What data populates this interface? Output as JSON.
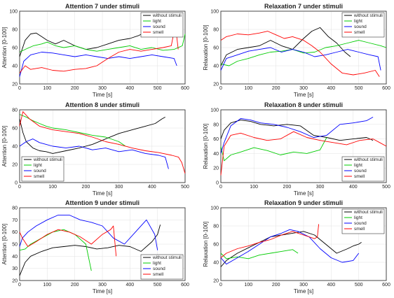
{
  "chart_data": [
    {
      "type": "line",
      "title": "Attention 7 under stimuli",
      "xlabel": "Time [s]",
      "ylabel": "Attention [0-100]",
      "xlim": [
        0,
        600
      ],
      "ylim": [
        20,
        100
      ],
      "xticks": [
        0,
        100,
        200,
        300,
        400,
        500,
        600
      ],
      "yticks": [
        20,
        40,
        60,
        80,
        100
      ],
      "grid": true,
      "legend": "top-right",
      "series": [
        {
          "name": "without stimuli",
          "color": "#000000",
          "x": [
            0,
            20,
            40,
            60,
            80,
            100,
            130,
            160,
            200,
            240,
            280,
            320,
            360,
            400,
            430,
            450,
            470
          ],
          "y": [
            50,
            68,
            75,
            76,
            72,
            68,
            64,
            68,
            62,
            58,
            60,
            64,
            68,
            70,
            73,
            76,
            80
          ]
        },
        {
          "name": "light",
          "color": "#00cc00",
          "x": [
            0,
            20,
            50,
            80,
            100,
            130,
            160,
            200,
            240,
            280,
            320,
            360,
            400,
            440,
            480,
            520,
            560,
            590,
            600
          ],
          "y": [
            55,
            58,
            62,
            64,
            66,
            62,
            60,
            62,
            58,
            56,
            58,
            60,
            62,
            58,
            60,
            57,
            58,
            62,
            75
          ]
        },
        {
          "name": "sound",
          "color": "#0000ff",
          "x": [
            0,
            15,
            40,
            80,
            120,
            160,
            200,
            240,
            280,
            320,
            360,
            400,
            440,
            480,
            520,
            560,
            570
          ],
          "y": [
            28,
            45,
            52,
            55,
            54,
            52,
            50,
            52,
            50,
            48,
            50,
            48,
            50,
            52,
            50,
            48,
            40
          ]
        },
        {
          "name": "smell",
          "color": "#ff0000",
          "x": [
            0,
            20,
            40,
            80,
            120,
            160,
            200,
            240,
            280,
            320,
            360,
            400,
            440,
            480,
            520,
            550,
            565,
            575
          ],
          "y": [
            32,
            40,
            36,
            38,
            35,
            34,
            36,
            37,
            40,
            48,
            55,
            58,
            56,
            58,
            60,
            62,
            85,
            58
          ]
        }
      ]
    },
    {
      "type": "line",
      "title": "Relaxation 7 under stimuli",
      "xlabel": "Time [s]",
      "ylabel": "Relaxation [0-100]",
      "xlim": [
        0,
        600
      ],
      "ylim": [
        20,
        100
      ],
      "xticks": [
        0,
        100,
        200,
        300,
        400,
        500,
        600
      ],
      "yticks": [
        20,
        40,
        60,
        80,
        100
      ],
      "grid": true,
      "legend": "top-right",
      "series": [
        {
          "name": "without stimuli",
          "color": "#000000",
          "x": [
            0,
            20,
            60,
            100,
            140,
            180,
            220,
            260,
            300,
            330,
            360,
            390,
            420,
            450,
            470
          ],
          "y": [
            40,
            52,
            58,
            60,
            62,
            68,
            62,
            58,
            70,
            78,
            82,
            72,
            65,
            55,
            50
          ]
        },
        {
          "name": "light",
          "color": "#00cc00",
          "x": [
            0,
            30,
            60,
            100,
            140,
            180,
            220,
            260,
            300,
            340,
            380,
            420,
            460,
            500,
            540,
            580,
            600
          ],
          "y": [
            42,
            40,
            45,
            48,
            52,
            55,
            56,
            58,
            54,
            55,
            60,
            62,
            65,
            68,
            65,
            62,
            60
          ]
        },
        {
          "name": "sound",
          "color": "#0000ff",
          "x": [
            0,
            20,
            60,
            100,
            140,
            180,
            220,
            260,
            300,
            340,
            380,
            420,
            460,
            500,
            540,
            570,
            580
          ],
          "y": [
            35,
            48,
            52,
            56,
            58,
            60,
            55,
            58,
            55,
            50,
            52,
            55,
            58,
            55,
            52,
            50,
            35
          ]
        },
        {
          "name": "smell",
          "color": "#ff0000",
          "x": [
            0,
            20,
            60,
            100,
            140,
            170,
            200,
            230,
            260,
            300,
            330,
            360,
            400,
            440,
            480,
            520,
            560,
            575
          ],
          "y": [
            68,
            72,
            75,
            74,
            76,
            78,
            74,
            70,
            72,
            68,
            62,
            55,
            42,
            32,
            30,
            32,
            35,
            28
          ]
        }
      ]
    },
    {
      "type": "line",
      "title": "Attention 8 under stimuli",
      "xlabel": "Time [s]",
      "ylabel": "Attention [0-100]",
      "xlim": [
        0,
        500
      ],
      "ylim": [
        0,
        80
      ],
      "xticks": [
        0,
        100,
        200,
        300,
        400,
        500
      ],
      "yticks": [
        0,
        20,
        40,
        60,
        80
      ],
      "grid": true,
      "legend": "bottom-left",
      "series": [
        {
          "name": "without stimuli",
          "color": "#000000",
          "x": [
            0,
            10,
            20,
            40,
            60,
            80,
            100,
            140,
            180,
            220,
            260,
            300,
            340,
            380,
            410,
            430,
            440
          ],
          "y": [
            70,
            55,
            45,
            38,
            35,
            34,
            32,
            35,
            38,
            42,
            48,
            54,
            58,
            62,
            65,
            70,
            72
          ]
        },
        {
          "name": "light",
          "color": "#00cc00",
          "x": [
            0,
            20,
            40,
            60,
            80,
            100,
            140,
            180,
            220,
            260,
            300,
            320
          ],
          "y": [
            75,
            72,
            68,
            65,
            62,
            60,
            58,
            55,
            52,
            50,
            45,
            40
          ]
        },
        {
          "name": "sound",
          "color": "#0000ff",
          "x": [
            0,
            20,
            40,
            60,
            80,
            100,
            140,
            180,
            220,
            260,
            300,
            340,
            380,
            420,
            440,
            450
          ],
          "y": [
            40,
            45,
            48,
            44,
            42,
            40,
            38,
            40,
            36,
            38,
            34,
            36,
            32,
            30,
            28,
            15
          ]
        },
        {
          "name": "smell",
          "color": "#ff0000",
          "x": [
            0,
            10,
            30,
            60,
            100,
            140,
            180,
            220,
            260,
            300,
            340,
            380,
            420,
            460,
            480,
            490,
            500
          ],
          "y": [
            62,
            78,
            70,
            62,
            58,
            56,
            54,
            50,
            45,
            42,
            38,
            35,
            33,
            30,
            28,
            22,
            10
          ]
        }
      ]
    },
    {
      "type": "line",
      "title": "Relaxation 8 under stimuli",
      "xlabel": "Time [s]",
      "ylabel": "Relaxation [0-100]",
      "xlim": [
        0,
        500
      ],
      "ylim": [
        0,
        100
      ],
      "xticks": [
        0,
        100,
        200,
        300,
        400,
        500
      ],
      "yticks": [
        0,
        20,
        40,
        60,
        80,
        100
      ],
      "grid": true,
      "legend": "bottom-right",
      "series": [
        {
          "name": "without stimuli",
          "color": "#000000",
          "x": [
            0,
            10,
            30,
            60,
            90,
            120,
            160,
            200,
            240,
            280,
            320,
            360,
            400,
            440,
            460
          ],
          "y": [
            60,
            72,
            82,
            86,
            84,
            80,
            78,
            80,
            78,
            65,
            62,
            58,
            60,
            62,
            58
          ]
        },
        {
          "name": "light",
          "color": "#00cc00",
          "x": [
            0,
            10,
            30,
            60,
            100,
            140,
            180,
            220,
            260,
            300,
            320
          ],
          "y": [
            50,
            30,
            38,
            42,
            48,
            44,
            38,
            42,
            40,
            45,
            62
          ]
        },
        {
          "name": "sound",
          "color": "#0000ff",
          "x": [
            0,
            10,
            30,
            60,
            90,
            120,
            160,
            200,
            240,
            280,
            320,
            360,
            400,
            440,
            460
          ],
          "y": [
            40,
            55,
            78,
            88,
            86,
            82,
            80,
            76,
            70,
            62,
            65,
            80,
            82,
            85,
            90
          ]
        },
        {
          "name": "smell",
          "color": "#ff0000",
          "x": [
            0,
            10,
            30,
            60,
            100,
            140,
            180,
            220,
            260,
            300,
            340,
            380,
            420,
            460,
            480,
            500
          ],
          "y": [
            10,
            50,
            65,
            68,
            62,
            58,
            60,
            70,
            62,
            58,
            55,
            52,
            58,
            60,
            55,
            50
          ]
        }
      ]
    },
    {
      "type": "line",
      "title": "Attention 9 under stimuli",
      "xlabel": "Time [s]",
      "ylabel": "Attention [0-100]",
      "xlim": [
        0,
        600
      ],
      "ylim": [
        20,
        80
      ],
      "xticks": [
        0,
        100,
        200,
        300,
        400,
        500,
        600
      ],
      "yticks": [
        20,
        30,
        40,
        50,
        60,
        70,
        80
      ],
      "grid": true,
      "legend": "bottom-right",
      "series": [
        {
          "name": "without stimuli",
          "color": "#000000",
          "x": [
            0,
            20,
            40,
            80,
            120,
            160,
            200,
            240,
            280,
            320,
            360,
            400,
            440,
            480,
            500,
            510
          ],
          "y": [
            24,
            35,
            40,
            44,
            47,
            48,
            49,
            48,
            46,
            47,
            49,
            48,
            44,
            52,
            58,
            66
          ]
        },
        {
          "name": "light",
          "color": "#00cc00",
          "x": [
            0,
            20,
            40,
            80,
            120,
            160,
            200,
            240,
            260
          ],
          "y": [
            45,
            46,
            50,
            55,
            60,
            62,
            58,
            50,
            28
          ]
        },
        {
          "name": "sound",
          "color": "#0000ff",
          "x": [
            0,
            10,
            30,
            60,
            100,
            140,
            180,
            220,
            260,
            300,
            340,
            380,
            420,
            460,
            490,
            500
          ],
          "y": [
            48,
            55,
            60,
            65,
            70,
            74,
            74,
            70,
            68,
            65,
            55,
            50,
            60,
            70,
            58,
            45
          ]
        },
        {
          "name": "smell",
          "color": "#ff0000",
          "x": [
            0,
            10,
            30,
            60,
            100,
            140,
            180,
            220,
            260,
            300,
            330,
            340,
            350
          ],
          "y": [
            60,
            55,
            48,
            52,
            58,
            62,
            60,
            56,
            50,
            58,
            62,
            65,
            40
          ]
        }
      ]
    },
    {
      "type": "line",
      "title": "Relaxation 9 under stimuli",
      "xlabel": "Time [s]",
      "ylabel": "Relaxation [0-100]",
      "xlim": [
        0,
        600
      ],
      "ylim": [
        20,
        100
      ],
      "xticks": [
        0,
        100,
        200,
        300,
        400,
        500,
        600
      ],
      "yticks": [
        20,
        40,
        60,
        80,
        100
      ],
      "grid": true,
      "legend": "top-right",
      "series": [
        {
          "name": "without stimuli",
          "color": "#000000",
          "x": [
            0,
            20,
            60,
            100,
            140,
            180,
            220,
            260,
            300,
            340,
            380,
            420,
            460,
            480,
            500,
            510
          ],
          "y": [
            35,
            42,
            50,
            56,
            62,
            68,
            70,
            72,
            74,
            70,
            60,
            50,
            55,
            58,
            60,
            62
          ]
        },
        {
          "name": "light",
          "color": "#00cc00",
          "x": [
            0,
            20,
            60,
            100,
            140,
            180,
            220,
            260,
            280
          ],
          "y": [
            50,
            44,
            46,
            44,
            48,
            50,
            52,
            54,
            50
          ]
        },
        {
          "name": "sound",
          "color": "#0000ff",
          "x": [
            0,
            20,
            60,
            100,
            140,
            180,
            220,
            250,
            280,
            320,
            360,
            400,
            440,
            480,
            500
          ],
          "y": [
            45,
            38,
            45,
            52,
            60,
            68,
            72,
            76,
            74,
            68,
            55,
            45,
            40,
            42,
            50
          ]
        },
        {
          "name": "smell",
          "color": "#ff0000",
          "x": [
            0,
            20,
            60,
            100,
            140,
            180,
            220,
            260,
            300,
            340,
            350,
            355
          ],
          "y": [
            45,
            50,
            55,
            58,
            62,
            65,
            70,
            74,
            70,
            66,
            68,
            82
          ]
        }
      ]
    }
  ]
}
